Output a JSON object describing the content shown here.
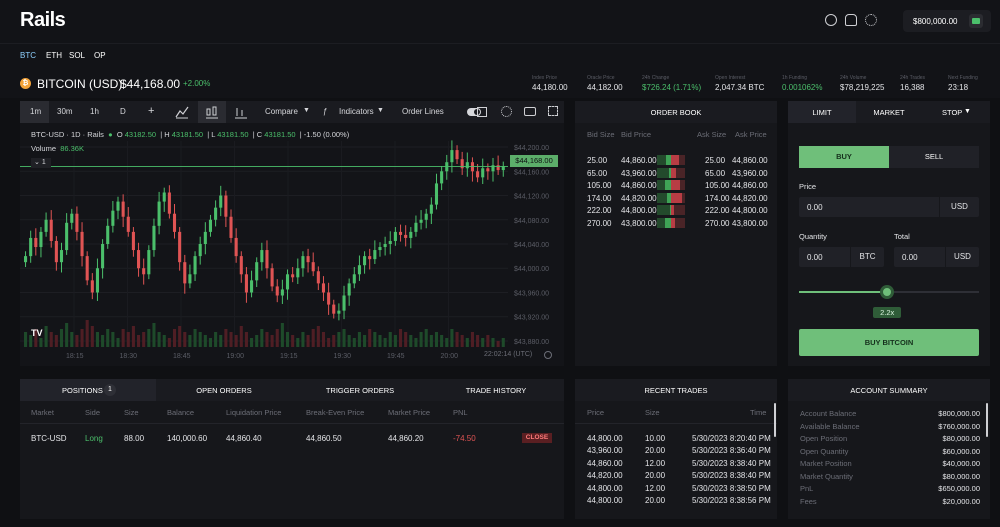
{
  "app": {
    "logo": "Rails",
    "balance": "$800,000.00"
  },
  "assets": [
    "BTC",
    "ETH",
    "SOL",
    "OP"
  ],
  "ticker": {
    "pair": "BITCOIN (USD)",
    "price": "$44,168.00",
    "change": "+2.00%",
    "stats": [
      {
        "label": "Index Price",
        "value": "44,180.00",
        "color": "#e4e5e8"
      },
      {
        "label": "Oracle Price",
        "value": "44,182.00",
        "color": "#e4e5e8"
      },
      {
        "label": "24h Change",
        "value": "$726.24 (1.71%)",
        "color": "#4bbf6b"
      },
      {
        "label": "Open Interest",
        "value": "2,047.34 BTC",
        "color": "#e4e5e8"
      },
      {
        "label": "1h Funding",
        "value": "0.001062%",
        "color": "#4bbf6b"
      },
      {
        "label": "24h Volume",
        "value": "$78,219,225",
        "color": "#e4e5e8"
      },
      {
        "label": "24h Trades",
        "value": "16,388",
        "color": "#e4e5e8"
      },
      {
        "label": "Next Funding",
        "value": "23:18",
        "color": "#e4e5e8"
      }
    ]
  },
  "chart_toolbar": {
    "timeframes": [
      "1m",
      "30m",
      "1h",
      "D"
    ],
    "plus": "+",
    "compare": "Compare",
    "indicators": "Indicators",
    "order_lines": "Order Lines"
  },
  "chart": {
    "symbol": "BTC-USD · 1D · Rails",
    "o_label": "O",
    "o": "43182.50",
    "h_label": "H",
    "h": "43181.50",
    "l_label": "L",
    "l": "43181.50",
    "c_label": "C",
    "c": "43181.50",
    "chg": "-1.50 (0.00%)",
    "volume_label": "Volume",
    "volume": "86.36K",
    "collapse": "1",
    "current_price": "$44,168.00",
    "timestamp": "22:02:14 (UTC)"
  },
  "chart_data": {
    "type": "candlestick",
    "y_ticks": [
      "$44,200.00",
      "$44,160.00",
      "$44,120.00",
      "$44,080.00",
      "$44,040.00",
      "$44,000.00",
      "$43,960.00",
      "$43,920.00",
      "$43,880.00"
    ],
    "x_ticks": [
      "18:15",
      "18:30",
      "18:45",
      "19:00",
      "19:15",
      "19:30",
      "19:45",
      "20:00"
    ],
    "ylim": [
      43870,
      44210
    ],
    "closes": [
      44020,
      44050,
      44035,
      44060,
      44080,
      44045,
      44010,
      44030,
      44075,
      44090,
      44060,
      44020,
      43980,
      43960,
      44000,
      44040,
      44070,
      44095,
      44110,
      44085,
      44060,
      44030,
      44000,
      43990,
      44030,
      44070,
      44110,
      44125,
      44090,
      44060,
      44010,
      43975,
      43990,
      44020,
      44040,
      44060,
      44080,
      44100,
      44120,
      44085,
      44050,
      44020,
      43990,
      43960,
      43980,
      44010,
      44030,
      44000,
      43970,
      43955,
      43965,
      43990,
      43985,
      44000,
      44020,
      44010,
      43995,
      43975,
      43960,
      43940,
      43925,
      43930,
      43955,
      43975,
      43990,
      44005,
      44020,
      44015,
      44030,
      44035,
      44040,
      44045,
      44060,
      44055,
      44050,
      44060,
      44075,
      44080,
      44090,
      44105,
      44140,
      44160,
      44175,
      44195,
      44180,
      44165,
      44175,
      44160,
      44150,
      44165,
      44160,
      44170,
      44162,
      44168
    ],
    "volumes": [
      0.5,
      0.4,
      0.6,
      0.3,
      0.7,
      0.5,
      0.4,
      0.6,
      0.8,
      0.5,
      0.4,
      0.6,
      0.9,
      0.7,
      0.5,
      0.4,
      0.6,
      0.5,
      0.3,
      0.6,
      0.5,
      0.7,
      0.4,
      0.5,
      0.6,
      0.8,
      0.5,
      0.4,
      0.3,
      0.6,
      0.7,
      0.5,
      0.4,
      0.6,
      0.5,
      0.4,
      0.3,
      0.5,
      0.4,
      0.6,
      0.5,
      0.4,
      0.7,
      0.5,
      0.3,
      0.4,
      0.6,
      0.5,
      0.4,
      0.6,
      0.8,
      0.5,
      0.4,
      0.3,
      0.5,
      0.4,
      0.6,
      0.7,
      0.5,
      0.3,
      0.4,
      0.5,
      0.6,
      0.4,
      0.3,
      0.5,
      0.4,
      0.6,
      0.5,
      0.4,
      0.3,
      0.5,
      0.4,
      0.6,
      0.5,
      0.4,
      0.3,
      0.5,
      0.6,
      0.4,
      0.5,
      0.4,
      0.3,
      0.6,
      0.5,
      0.4,
      0.3,
      0.5,
      0.4,
      0.3,
      0.4,
      0.3,
      0.2,
      0.3
    ]
  },
  "bottom_tabs": {
    "positions": "POSITIONS",
    "positions_count": "1",
    "open_orders": "OPEN ORDERS",
    "trigger_orders": "TRIGGER ORDERS",
    "trade_history": "TRADE HISTORY"
  },
  "positions": {
    "headers": [
      "Market",
      "Side",
      "Size",
      "Balance",
      "Liquidation Price",
      "Break-Even Price",
      "Market Price",
      "PNL"
    ],
    "rows": [
      {
        "market": "BTC-USD",
        "side": "Long",
        "size": "88.00",
        "balance": "140,000.60",
        "liq": "44,860.40",
        "be": "44,860.50",
        "mp": "44,860.20",
        "pnl": "-74.50",
        "action": "CLOSE"
      }
    ]
  },
  "order_book": {
    "title": "ORDER BOOK",
    "headers": [
      "Bid Size",
      "Bid Price",
      "Ask Size",
      "Ask Price"
    ],
    "rows": [
      {
        "bs": "25.00",
        "bp": "44,860.00",
        "as": "25.00",
        "ap": "44,860.00",
        "bid_fill": 0.35,
        "ask_fill": 0.55
      },
      {
        "bs": "65.00",
        "bp": "43,960.00",
        "as": "65.00",
        "ap": "43,960.00",
        "bid_fill": 0.15,
        "ask_fill": 0.35
      },
      {
        "bs": "105.00",
        "bp": "44,860.00",
        "as": "105.00",
        "ap": "44,860.00",
        "bid_fill": 0.45,
        "ask_fill": 0.65
      },
      {
        "bs": "174.00",
        "bp": "44,820.00",
        "as": "174.00",
        "ap": "44,820.00",
        "bid_fill": 0.3,
        "ask_fill": 0.75
      },
      {
        "bs": "222.00",
        "bp": "44,800.00",
        "as": "222.00",
        "ap": "44,800.00",
        "bid_fill": 0.1,
        "ask_fill": 0.2
      },
      {
        "bs": "270.00",
        "bp": "43,800.00",
        "as": "270.00",
        "ap": "43,800.00",
        "bid_fill": 0.4,
        "ask_fill": 0.3
      }
    ]
  },
  "recent_trades": {
    "title": "RECENT TRADES",
    "headers": [
      "Price",
      "Size",
      "Time"
    ],
    "rows": [
      {
        "p": "44,800.00",
        "s": "10.00",
        "t": "5/30/2023 8:20:40 PM"
      },
      {
        "p": "43,960.00",
        "s": "20.00",
        "t": "5/30/2023 8:36:40 PM"
      },
      {
        "p": "44,860.00",
        "s": "12.00",
        "t": "5/30/2023 8:38:40 PM"
      },
      {
        "p": "44,820.00",
        "s": "20.00",
        "t": "5/30/2023 8:38:40 PM"
      },
      {
        "p": "44,800.00",
        "s": "12.00",
        "t": "5/30/2023 8:38:50 PM"
      },
      {
        "p": "44,800.00",
        "s": "20.00",
        "t": "5/30/2023 8:38:56 PM"
      }
    ]
  },
  "order_form": {
    "tabs": [
      "LIMIT",
      "MARKET",
      "STOP"
    ],
    "buy": "BUY",
    "sell": "SELL",
    "price_label": "Price",
    "price": "0.00",
    "price_unit": "USD",
    "quantity_label": "Quantity",
    "quantity": "0.00",
    "quantity_unit": "BTC",
    "total_label": "Total",
    "total": "0.00",
    "total_unit": "USD",
    "leverage": "2.2x",
    "leverage_fraction": 0.49,
    "submit": "BUY BITCOIN"
  },
  "account": {
    "title": "ACCOUNT SUMMARY",
    "rows": [
      {
        "label": "Account Balance",
        "value": "$800,000.00"
      },
      {
        "label": "Available Balance",
        "value": "$760,000.00"
      },
      {
        "label": "Open Position",
        "value": "$80,000.00"
      },
      {
        "label": "Open Quantity",
        "value": "$60,000.00"
      },
      {
        "label": "Market Position",
        "value": "$40,000.00"
      },
      {
        "label": "Market Quantity",
        "value": "$80,000.00"
      },
      {
        "label": "PnL",
        "value": "$650,000.00"
      },
      {
        "label": "Fees",
        "value": "$20,000.00"
      }
    ]
  }
}
